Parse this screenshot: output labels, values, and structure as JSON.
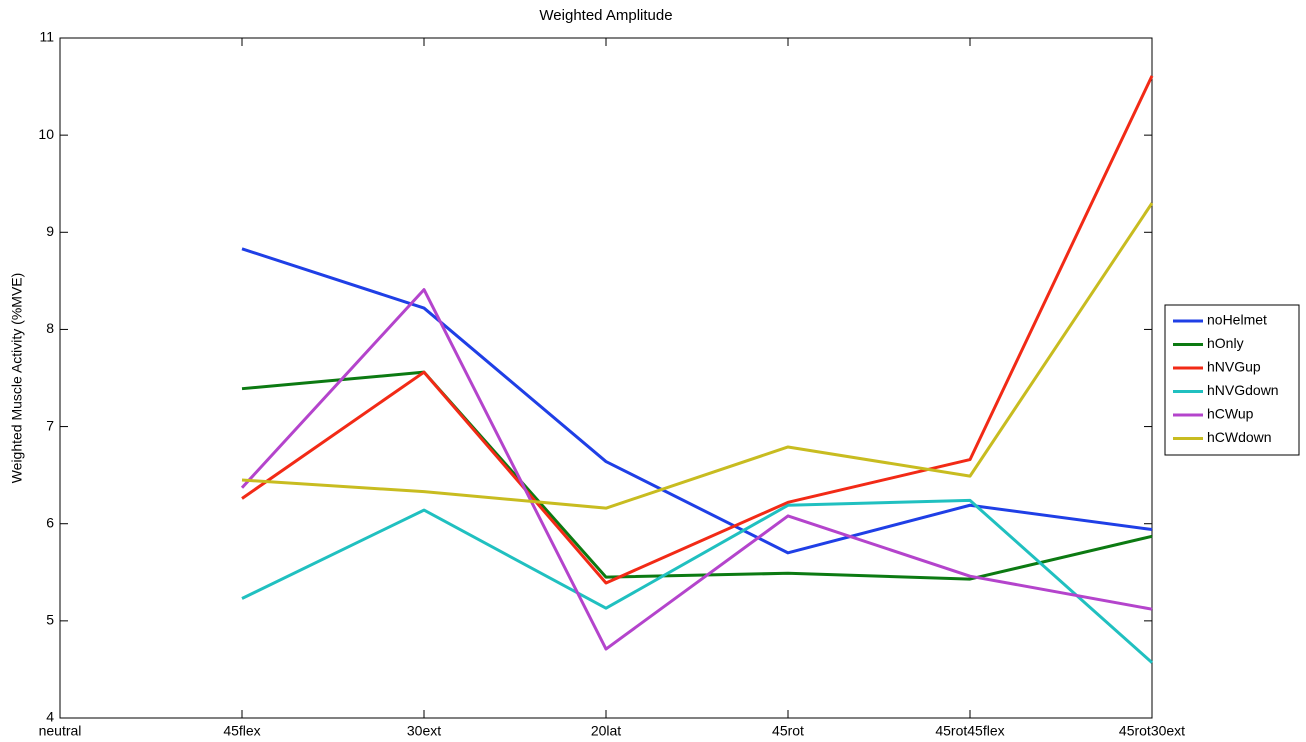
{
  "chart_data": {
    "type": "line",
    "title": "Weighted Amplitude",
    "y_label": "Weighted Muscle Activity (%MVE)",
    "categories": [
      "neutral",
      "45flex",
      "30ext",
      "20lat",
      "45rot",
      "45rot45flex",
      "45rot30ext"
    ],
    "series": [
      {
        "name": "noHelmet",
        "color": "#1f3fe6",
        "values": [
          null,
          8.83,
          8.22,
          6.64,
          5.7,
          6.19,
          5.94
        ]
      },
      {
        "name": "hOnly",
        "color": "#0c7a12",
        "values": [
          null,
          7.39,
          7.56,
          5.45,
          5.49,
          5.43,
          5.87
        ]
      },
      {
        "name": "hNVGup",
        "color": "#f22a16",
        "values": [
          null,
          6.26,
          7.56,
          5.39,
          6.22,
          6.66,
          10.61
        ]
      },
      {
        "name": "hNVGdown",
        "color": "#20c0c0",
        "values": [
          null,
          5.23,
          6.14,
          5.13,
          6.19,
          6.24,
          4.57
        ]
      },
      {
        "name": "hCWup",
        "color": "#b444cc",
        "values": [
          null,
          6.37,
          8.41,
          4.71,
          6.08,
          5.46,
          5.12
        ]
      },
      {
        "name": "hCWdown",
        "color": "#c8bc20",
        "values": [
          null,
          6.45,
          6.33,
          6.16,
          6.79,
          6.49,
          9.3
        ]
      }
    ],
    "ylim": [
      4,
      11
    ],
    "yticks": [
      4,
      5,
      6,
      7,
      8,
      9,
      10,
      11
    ],
    "grid": false,
    "legend": "right"
  }
}
